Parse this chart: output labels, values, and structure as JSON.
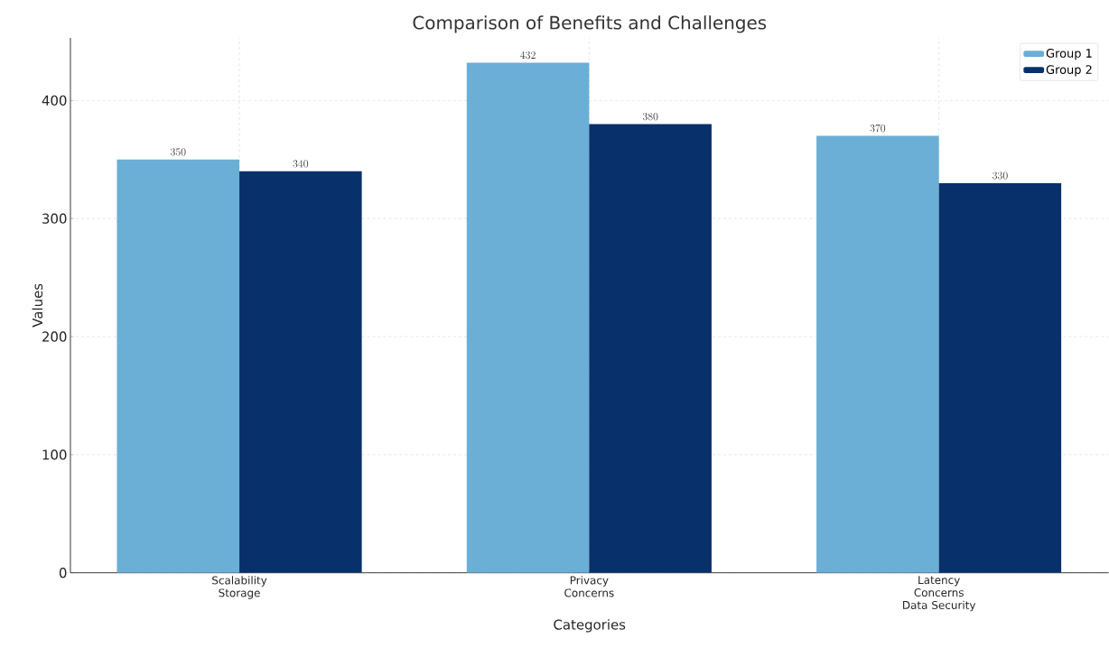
{
  "chart_data": {
    "type": "bar",
    "title": "Comparison of Benefits and Challenges",
    "xlabel": "Categories",
    "ylabel": "Values",
    "categories": [
      "Scalability Storage",
      "Privacy Concerns",
      "Latency Concerns Data Security"
    ],
    "series": [
      {
        "name": "Group 1",
        "color": "#6baed6",
        "values": [
          350,
          432,
          370
        ]
      },
      {
        "name": "Group 2",
        "color": "#08306b",
        "values": [
          340,
          380,
          330
        ]
      }
    ],
    "ylim": [
      0,
      453
    ],
    "yticks": [
      0,
      100,
      200,
      300,
      400
    ],
    "grid": true,
    "legend": "top right",
    "data_labels": true
  }
}
